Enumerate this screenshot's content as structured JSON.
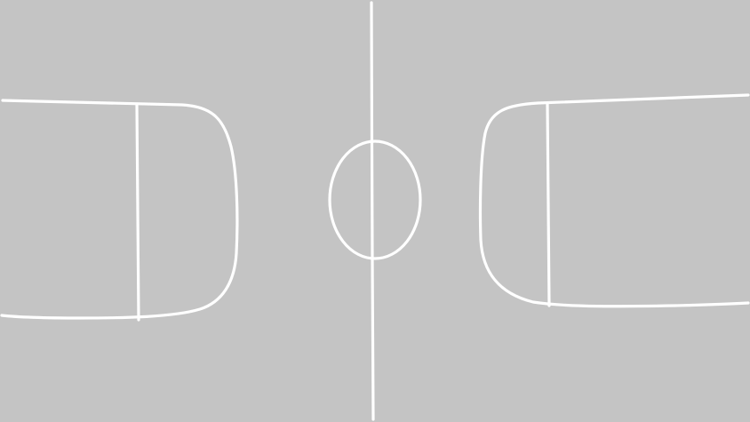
{
  "court": {
    "background_color": "#c4c4c4",
    "line_color": "#ffffff",
    "elements": [
      "center-line",
      "center-circle",
      "left-key-area",
      "left-key-line",
      "right-key-area",
      "right-key-line"
    ]
  }
}
